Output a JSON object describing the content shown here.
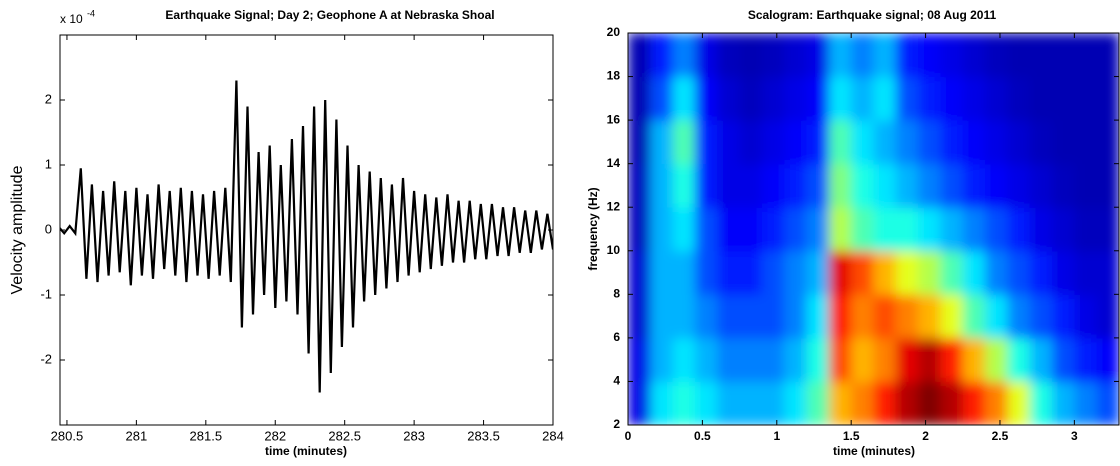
{
  "chart_data": [
    {
      "type": "line",
      "title": "Earthquake Signal; Day 2; Geophone A at Nebraska Shoal",
      "xlabel": "time (minutes)",
      "ylabel": "Velocity amplitude",
      "exponent_base": "x 10",
      "exponent_power": "-4",
      "color": "#000000",
      "xlim": [
        280.45,
        284
      ],
      "ylim": [
        -3,
        3
      ],
      "xticks": [
        280.5,
        281,
        281.5,
        282,
        282.5,
        283,
        283.5,
        284
      ],
      "yticks": [
        -2,
        -1,
        0,
        1,
        2
      ],
      "x": [
        280.44,
        280.48,
        280.52,
        280.56,
        280.6,
        280.64,
        280.68,
        280.72,
        280.76,
        280.8,
        280.84,
        280.88,
        280.92,
        280.96,
        281,
        281.04,
        281.08,
        281.12,
        281.16,
        281.2,
        281.24,
        281.28,
        281.32,
        281.36,
        281.4,
        281.44,
        281.48,
        281.52,
        281.56,
        281.6,
        281.64,
        281.68,
        281.72,
        281.76,
        281.8,
        281.84,
        281.88,
        281.92,
        281.96,
        282,
        282.04,
        282.08,
        282.12,
        282.16,
        282.2,
        282.24,
        282.28,
        282.32,
        282.36,
        282.4,
        282.44,
        282.48,
        282.52,
        282.56,
        282.6,
        282.64,
        282.68,
        282.72,
        282.76,
        282.8,
        282.84,
        282.88,
        282.92,
        282.96,
        283,
        283.04,
        283.08,
        283.12,
        283.16,
        283.2,
        283.24,
        283.28,
        283.32,
        283.36,
        283.4,
        283.44,
        283.48,
        283.52,
        283.56,
        283.6,
        283.64,
        283.68,
        283.72,
        283.76,
        283.8,
        283.84,
        283.88,
        283.92,
        283.96,
        284
      ],
      "values": [
        0.05,
        -0.05,
        0.06,
        -0.05,
        0.95,
        -0.75,
        0.7,
        -0.8,
        0.6,
        -0.7,
        0.75,
        -0.65,
        0.6,
        -0.85,
        0.65,
        -0.7,
        0.55,
        -0.75,
        0.7,
        -0.6,
        0.6,
        -0.7,
        0.65,
        -0.8,
        0.6,
        -0.7,
        0.55,
        -0.75,
        0.6,
        -0.7,
        0.65,
        -0.8,
        2.3,
        -1.5,
        1.9,
        -1.3,
        1.2,
        -1.0,
        1.3,
        -1.2,
        1.0,
        -1.1,
        1.4,
        -1.3,
        1.6,
        -1.9,
        1.9,
        -2.5,
        2.0,
        -2.2,
        1.7,
        -1.8,
        1.3,
        -1.5,
        1.0,
        -1.1,
        0.9,
        -1.0,
        0.8,
        -0.9,
        0.7,
        -0.8,
        0.8,
        -0.7,
        0.6,
        -0.65,
        0.55,
        -0.6,
        0.5,
        -0.55,
        0.55,
        -0.5,
        0.45,
        -0.5,
        0.45,
        -0.45,
        0.4,
        -0.45,
        0.4,
        -0.4,
        0.35,
        -0.4,
        0.35,
        -0.35,
        0.3,
        -0.35,
        0.3,
        -0.3,
        0.25,
        -0.3
      ]
    },
    {
      "type": "heatmap",
      "title": "Scalogram: Earthquake signal; 08 Aug 2011",
      "xlabel": "time (minutes)",
      "ylabel": "frequency (Hz)",
      "colormap": "jet",
      "xlim": [
        0,
        3.3
      ],
      "ylim": [
        2,
        20
      ],
      "xticks": [
        0,
        0.5,
        1,
        1.5,
        2,
        2.5,
        3
      ],
      "yticks": [
        2,
        4,
        6,
        8,
        10,
        12,
        14,
        16,
        18,
        20
      ],
      "x_edges": [
        0,
        0.15,
        0.3,
        0.45,
        0.6,
        0.75,
        0.9,
        1.05,
        1.2,
        1.35,
        1.5,
        1.65,
        1.8,
        1.95,
        2.1,
        2.25,
        2.4,
        2.55,
        2.7,
        2.85,
        3,
        3.15,
        3.3
      ],
      "y_edges": [
        2,
        4,
        6,
        8,
        10,
        12,
        14,
        16,
        18,
        20
      ],
      "z": [
        [
          0.1,
          0.35,
          0.4,
          0.35,
          0.3,
          0.3,
          0.3,
          0.35,
          0.45,
          0.7,
          0.75,
          0.85,
          0.95,
          1.0,
          0.95,
          0.85,
          0.75,
          0.6,
          0.4,
          0.3,
          0.25,
          0.2
        ],
        [
          0.1,
          0.3,
          0.35,
          0.3,
          0.25,
          0.25,
          0.25,
          0.3,
          0.4,
          0.8,
          0.7,
          0.75,
          0.9,
          0.95,
          0.85,
          0.7,
          0.55,
          0.4,
          0.3,
          0.2,
          0.15,
          0.12
        ],
        [
          0.08,
          0.3,
          0.3,
          0.25,
          0.2,
          0.2,
          0.2,
          0.25,
          0.35,
          0.85,
          0.75,
          0.8,
          0.75,
          0.7,
          0.6,
          0.45,
          0.35,
          0.25,
          0.2,
          0.15,
          0.1,
          0.08
        ],
        [
          0.08,
          0.3,
          0.3,
          0.2,
          0.15,
          0.15,
          0.2,
          0.25,
          0.3,
          0.9,
          0.8,
          0.7,
          0.6,
          0.55,
          0.45,
          0.35,
          0.25,
          0.2,
          0.15,
          0.1,
          0.08,
          0.08
        ],
        [
          0.06,
          0.3,
          0.35,
          0.2,
          0.12,
          0.12,
          0.15,
          0.2,
          0.25,
          0.55,
          0.45,
          0.4,
          0.4,
          0.35,
          0.3,
          0.25,
          0.2,
          0.15,
          0.1,
          0.08,
          0.06,
          0.06
        ],
        [
          0.06,
          0.3,
          0.4,
          0.15,
          0.1,
          0.1,
          0.12,
          0.15,
          0.2,
          0.5,
          0.4,
          0.35,
          0.3,
          0.25,
          0.2,
          0.15,
          0.12,
          0.1,
          0.08,
          0.06,
          0.05,
          0.05
        ],
        [
          0.05,
          0.3,
          0.45,
          0.15,
          0.1,
          0.08,
          0.1,
          0.12,
          0.15,
          0.45,
          0.35,
          0.3,
          0.25,
          0.2,
          0.15,
          0.12,
          0.1,
          0.08,
          0.06,
          0.05,
          0.05,
          0.05
        ],
        [
          0.05,
          0.2,
          0.35,
          0.12,
          0.08,
          0.06,
          0.08,
          0.1,
          0.12,
          0.35,
          0.3,
          0.35,
          0.2,
          0.15,
          0.12,
          0.1,
          0.08,
          0.06,
          0.05,
          0.05,
          0.05,
          0.05
        ],
        [
          0.05,
          0.15,
          0.25,
          0.1,
          0.06,
          0.05,
          0.06,
          0.08,
          0.1,
          0.3,
          0.25,
          0.3,
          0.15,
          0.12,
          0.1,
          0.08,
          0.06,
          0.05,
          0.05,
          0.05,
          0.05,
          0.05
        ]
      ]
    }
  ]
}
